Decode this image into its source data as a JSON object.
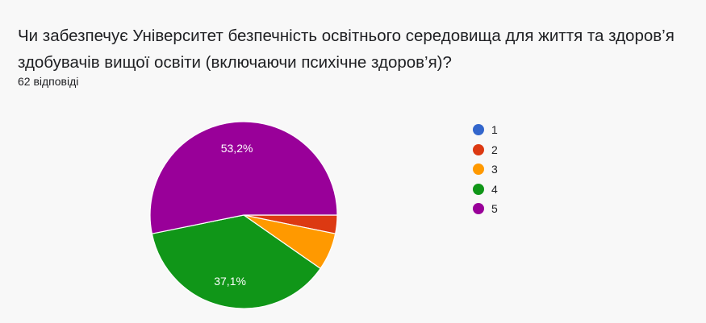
{
  "question": {
    "title": "Чи забезпечує Університет безпечність освітнього середовища для життя та здоров’я здобувачів вищої освіти (включаючи психічне здоров’я)?",
    "responses": "62 відповіді"
  },
  "chart_data": {
    "type": "pie",
    "categories": [
      "1",
      "2",
      "3",
      "4",
      "5"
    ],
    "values": [
      0,
      3.2,
      6.5,
      37.1,
      53.2
    ],
    "colors": [
      "#3366cc",
      "#dc3912",
      "#ff9900",
      "#109618",
      "#990099"
    ],
    "data_labels": [
      "",
      "",
      "",
      "37,1%",
      "53,2%"
    ],
    "legend": {
      "position": "right"
    }
  }
}
